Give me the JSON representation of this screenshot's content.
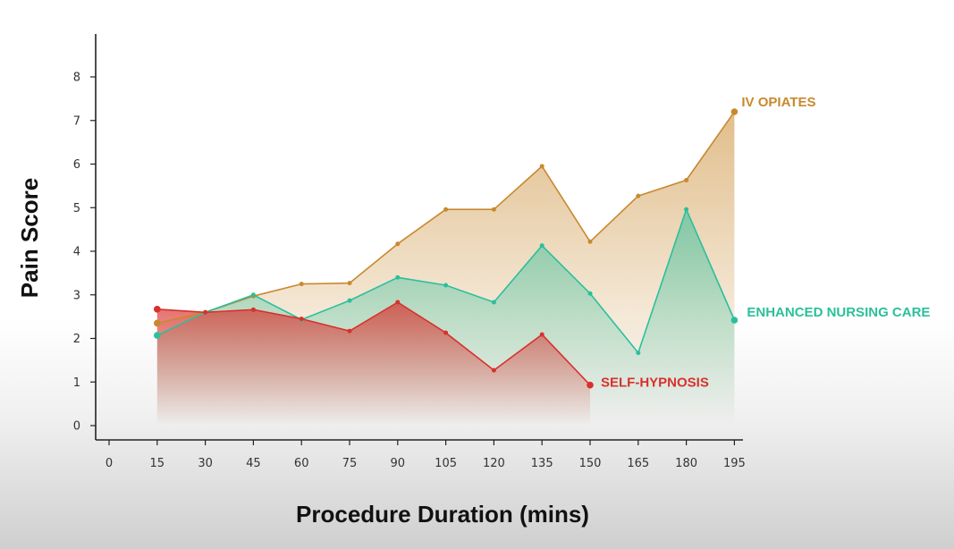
{
  "chart_data": {
    "type": "area",
    "title": "",
    "xlabel": "Procedure Duration (mins)",
    "ylabel": "Pain Score",
    "x_ticks": [
      0,
      15,
      30,
      45,
      60,
      75,
      90,
      105,
      120,
      135,
      150,
      165,
      180,
      195
    ],
    "y_ticks": [
      0,
      1,
      2,
      3,
      4,
      5,
      6,
      7,
      8
    ],
    "xlim": [
      0,
      195
    ],
    "ylim": [
      0,
      8.8
    ],
    "grid": false,
    "legend": "inline labels at series ends",
    "series": [
      {
        "name": "IV OPIATES",
        "color": "#c8892e",
        "x": [
          15,
          30,
          45,
          60,
          75,
          90,
          105,
          120,
          135,
          150,
          165,
          180,
          195
        ],
        "y": [
          2.35,
          2.6,
          2.97,
          3.25,
          3.27,
          4.17,
          4.96,
          4.96,
          5.95,
          4.22,
          5.27,
          5.63,
          7.2
        ]
      },
      {
        "name": "ENHANCED NURSING CARE",
        "color": "#2bbf9c",
        "x": [
          15,
          30,
          45,
          60,
          75,
          90,
          105,
          120,
          135,
          150,
          165,
          180,
          195
        ],
        "y": [
          2.07,
          2.6,
          3.0,
          2.43,
          2.87,
          3.4,
          3.22,
          2.83,
          4.13,
          3.03,
          1.67,
          4.96,
          2.42
        ]
      },
      {
        "name": "SELF-HYPNOSIS",
        "color": "#d9302c",
        "x": [
          15,
          30,
          45,
          60,
          75,
          90,
          105,
          120,
          135,
          150
        ],
        "y": [
          2.67,
          2.6,
          2.66,
          2.45,
          2.17,
          2.83,
          2.13,
          1.27,
          2.09,
          0.93
        ]
      }
    ]
  }
}
